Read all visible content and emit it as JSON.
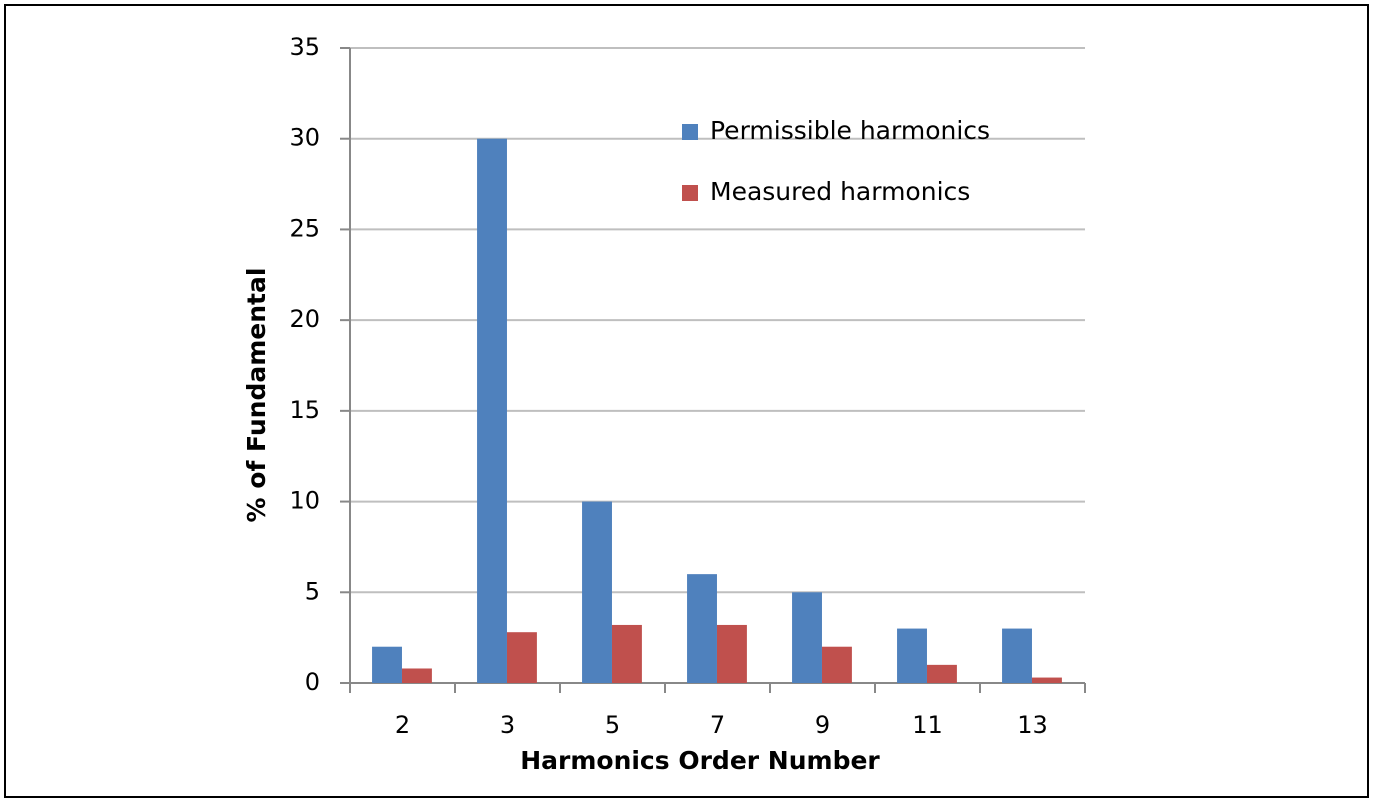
{
  "chart_data": {
    "type": "bar",
    "x_label": "Harmonics Order Number",
    "y_label": "% of Fundamental",
    "categories": [
      "2",
      "3",
      "5",
      "7",
      "9",
      "11",
      "13"
    ],
    "series": [
      {
        "name": "Permissible harmonics",
        "color": "#4f81bd",
        "values": [
          2,
          30,
          10,
          6,
          5,
          3,
          3
        ]
      },
      {
        "name": "Measured harmonics",
        "color": "#c0504d",
        "values": [
          0.8,
          2.8,
          3.2,
          3.2,
          2,
          1,
          0.3
        ]
      }
    ],
    "ylim": [
      0,
      35
    ],
    "yticks": [
      0,
      5,
      10,
      15,
      20,
      25,
      30,
      35
    ],
    "grid": true,
    "legend": "upper right"
  }
}
